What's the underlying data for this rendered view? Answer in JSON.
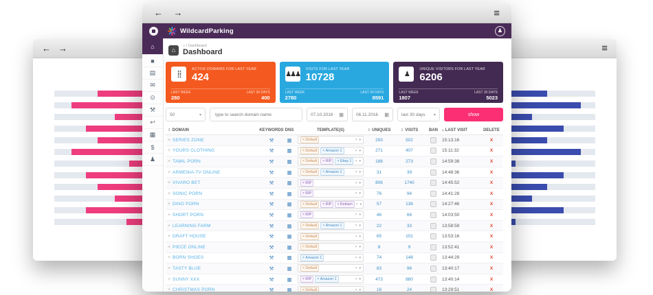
{
  "window_chrome": {
    "back_icon": "←",
    "forward_icon": "→",
    "menu_icon": "≡"
  },
  "background_windows": {
    "left": {
      "bar_color": "#ee3d7e",
      "bars_pct": [
        82,
        93,
        75,
        87,
        82,
        93,
        69,
        87,
        82,
        75,
        87,
        70
      ]
    },
    "right": {
      "bar_color": "#3a4cad",
      "bars_pct": [
        77,
        93,
        70,
        85,
        77,
        93,
        62,
        85,
        77,
        70,
        85,
        62
      ]
    }
  },
  "app_header": {
    "brand": "WildcardParking",
    "user_icon": "♟",
    "logo_colors": [
      "#29a8e0",
      "#ee3d7e",
      "#f4591f",
      "#3a4cad",
      "#7ac143",
      "#8a5fb0"
    ]
  },
  "sidebar": {
    "items": [
      {
        "name": "home",
        "glyph": "⌂",
        "active": true
      },
      {
        "name": "briefcase",
        "glyph": "■",
        "active": false
      },
      {
        "name": "list",
        "glyph": "▤",
        "active": false
      },
      {
        "name": "mail",
        "glyph": "✉",
        "active": false
      },
      {
        "name": "chat",
        "glyph": "⊙",
        "active": false
      },
      {
        "name": "tools",
        "glyph": "⚒",
        "active": false
      },
      {
        "name": "reply",
        "glyph": "↩",
        "active": false
      },
      {
        "name": "grid",
        "glyph": "▦",
        "active": false
      },
      {
        "name": "billing",
        "glyph": "$",
        "active": false
      },
      {
        "name": "user",
        "glyph": "♟",
        "active": false
      }
    ]
  },
  "page": {
    "home_icon": "⌂",
    "breadcrumb_home": "⌂",
    "breadcrumb": "/ Dashboard",
    "title": "Dashboard"
  },
  "cards": [
    {
      "title": "ACTIVE DOMAINS FOR LAST YEAR",
      "value": "424",
      "icon": "⣿",
      "icon_name": "domains-grid-icon",
      "accent": "#f4591f",
      "week_label": "LAST WEEK",
      "week_value": "280",
      "month_label": "LAST 30 DAYS",
      "month_value": "400"
    },
    {
      "title": "VISITS FOR LAST YEAR",
      "value": "10728",
      "icon": "♟♟♟",
      "icon_name": "visitors-group-icon",
      "accent": "#29a8e0",
      "week_label": "LAST WEEK",
      "week_value": "2780",
      "month_label": "LAST 30 DAYS",
      "month_value": "8591"
    },
    {
      "title": "UNIQUE VISITORS FOR LAST YEAR",
      "value": "6206",
      "icon": "♟",
      "icon_name": "person-icon",
      "accent": "#432a52",
      "week_label": "LAST WEEK",
      "week_value": "1807",
      "month_label": "LAST 30 DAYS",
      "month_value": "5023"
    }
  ],
  "filters": {
    "page_size": "50",
    "caret": "▾",
    "calendar_icon": "⊞",
    "search_placeholder": "type to search domain name",
    "date_from": "07.10.2016",
    "date_to": "06.11.2016",
    "range": "last 30 days",
    "show_label": "show"
  },
  "table": {
    "columns": [
      {
        "key": "domain",
        "label": "DOMAIN",
        "sort": "both"
      },
      {
        "key": "keywords",
        "label": "KEYWORDS",
        "sort": null
      },
      {
        "key": "dns",
        "label": "DNS",
        "sort": null
      },
      {
        "key": "templates",
        "label": "TEMPLATE(S)",
        "sort": null
      },
      {
        "key": "uniques",
        "label": "UNIQUES",
        "sort": "both"
      },
      {
        "key": "visits",
        "label": "VISITS",
        "sort": "both"
      },
      {
        "key": "ban",
        "label": "BAN",
        "sort": null
      },
      {
        "key": "last_visit",
        "label": "LAST VISIT",
        "sort": "asc"
      },
      {
        "key": "delete",
        "label": "DELETE",
        "sort": null
      }
    ],
    "sort_both_icon": "⇕",
    "sort_asc_icon": "▴",
    "expander": "+",
    "delete_glyph": "X",
    "keywords_icon": "⚒",
    "dns_icon": "▦",
    "tag_clear_icon": "×",
    "tag_x": "×",
    "select_caret": "▾",
    "tag_styles": {
      "Default": "orange",
      "RIP": "purple",
      "Amazon 1": "blue",
      "Ebay 1": "blue",
      "Reklam": "purple"
    },
    "rows": [
      {
        "domain": "SERIES ZONE",
        "templates": [
          "Default"
        ],
        "uniques": "293",
        "visits": "502",
        "last_visit": "15:13:16"
      },
      {
        "domain": "YOURS CLOTHING",
        "templates": [
          "Default",
          "Amazon 1"
        ],
        "uniques": "271",
        "visits": "407",
        "last_visit": "15:11:32"
      },
      {
        "domain": "TAMIL PORN",
        "templates": [
          "Default",
          "RIP",
          "Ebay 1"
        ],
        "uniques": "188",
        "visits": "273",
        "last_visit": "14:59:38"
      },
      {
        "domain": "ARMENIA-TV ONLINE",
        "templates": [
          "Default",
          "Amazon 1"
        ],
        "uniques": "31",
        "visits": "39",
        "last_visit": "14:48:36"
      },
      {
        "domain": "VIVARO BET",
        "templates": [
          "RIP"
        ],
        "uniques": "806",
        "visits": "1740",
        "last_visit": "14:45:52"
      },
      {
        "domain": "SONIC PORN",
        "templates": [
          "RIP"
        ],
        "uniques": "76",
        "visits": "94",
        "last_visit": "14:41:28"
      },
      {
        "domain": "DINO PORN",
        "templates": [
          "Default",
          "RIP",
          "Reklam"
        ],
        "uniques": "57",
        "visits": "136",
        "last_visit": "14:27:46"
      },
      {
        "domain": "SHORT PORN",
        "templates": [
          "RIP"
        ],
        "uniques": "46",
        "visits": "66",
        "last_visit": "14:03:50"
      },
      {
        "domain": "LEARNING FARM",
        "templates": [
          "Default",
          "Amazon 1"
        ],
        "uniques": "22",
        "visits": "33",
        "last_visit": "13:58:59"
      },
      {
        "domain": "DRAFT HOUSE",
        "templates": [
          "Default"
        ],
        "uniques": "65",
        "visits": "101",
        "last_visit": "13:53:16"
      },
      {
        "domain": "PIECE ONLINE",
        "templates": [
          "Default"
        ],
        "uniques": "8",
        "visits": "9",
        "last_visit": "13:52:41"
      },
      {
        "domain": "BORN SHOES",
        "templates": [
          "Amazon 1"
        ],
        "uniques": "74",
        "visits": "148",
        "last_visit": "13:44:29"
      },
      {
        "domain": "TASTY BLUE",
        "templates": [
          "Default"
        ],
        "uniques": "83",
        "visits": "96",
        "last_visit": "13:40:17"
      },
      {
        "domain": "SUNNY XXX",
        "templates": [
          "RIP",
          "Amazon 1"
        ],
        "uniques": "473",
        "visits": "880",
        "last_visit": "13:40:14"
      },
      {
        "domain": "CHRISTMAS PORN",
        "templates": [
          "Default"
        ],
        "uniques": "16",
        "visits": "24",
        "last_visit": "13:29:51"
      }
    ]
  }
}
